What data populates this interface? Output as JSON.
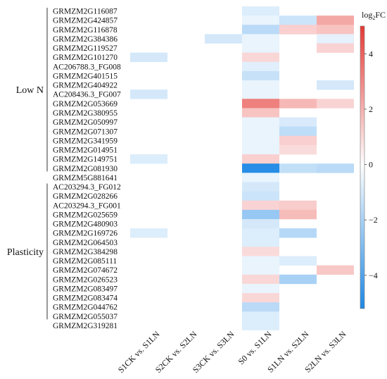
{
  "chart_data": {
    "type": "heatmap",
    "title": "",
    "legend": {
      "title_base": "log",
      "title_sub": "2",
      "title_suffix": "FC",
      "ticks": [
        4,
        2,
        0,
        -2,
        -4
      ],
      "range": [
        -5.2,
        5.0
      ]
    },
    "groups": [
      {
        "label": "Low N",
        "start": 0,
        "end": 17
      },
      {
        "label": "Plasticity",
        "start": 19,
        "end": 33
      }
    ],
    "columns": [
      "S1CK vs. S1LN",
      "S2CK vs. S2LN",
      "S3CK vs. S3LN",
      "S0 vs. S1LN",
      "S1LN vs. S2LN",
      "S2LN vs. S3LN"
    ],
    "rows": [
      "GRMZM2G116087",
      "GRMZM2G424857",
      "GRMZM2G116878",
      "GRMZM2G384386",
      "GRMZM2G119527",
      "GRMZM2G101270",
      "AC206788.3_FG008",
      "GRMZM2G401515",
      "GRMZM2G404922",
      "AC208436.3_FG007",
      "GRMZM2G053669",
      "GRMZM2G380955",
      "GRMZM2G050997",
      "GRMZM2G071307",
      "GRMZM2G341959",
      "GRMZM2G014951",
      "GRMZM2G149751",
      "GRMZM2G081930",
      "GRMZM5G881641",
      "AC203294.3_FG012",
      "GRMZM2G028266",
      "AC203294.3_FG001",
      "GRMZM2G025659",
      "GRMZM2G480903",
      "GRMZM2G169726",
      "GRMZM2G064503",
      "GRMZM2G384298",
      "GRMZM2G085111",
      "GRMZM2G074672",
      "GRMZM2G026523",
      "GRMZM2G083497",
      "GRMZM2G083474",
      "GRMZM2G044762",
      "GRMZM2G055037",
      "GRMZM2G319281"
    ],
    "values": [
      [
        null,
        null,
        null,
        -0.8,
        null,
        null
      ],
      [
        null,
        null,
        null,
        -0.5,
        -1.2,
        2.2
      ],
      [
        null,
        null,
        null,
        -1.6,
        1.2,
        1.5
      ],
      [
        null,
        null,
        -1.0,
        -0.5,
        null,
        -0.6
      ],
      [
        null,
        null,
        null,
        -0.5,
        null,
        1.1
      ],
      [
        -1.0,
        null,
        null,
        1.0,
        null,
        null
      ],
      [
        null,
        null,
        null,
        -0.7,
        null,
        null
      ],
      [
        null,
        null,
        null,
        -1.3,
        null,
        null
      ],
      [
        null,
        null,
        null,
        -0.5,
        null,
        -1.0
      ],
      [
        -1.0,
        null,
        null,
        -0.5,
        null,
        null
      ],
      [
        null,
        null,
        null,
        3.2,
        1.8,
        1.1
      ],
      [
        null,
        null,
        null,
        1.5,
        null,
        null
      ],
      [
        null,
        null,
        null,
        -0.5,
        -0.9,
        null
      ],
      [
        null,
        null,
        null,
        -0.5,
        -1.5,
        null
      ],
      [
        null,
        null,
        null,
        -0.5,
        1.2,
        null
      ],
      [
        null,
        null,
        null,
        -0.5,
        0.9,
        null
      ],
      [
        -0.8,
        null,
        null,
        1.2,
        null,
        null
      ],
      [
        null,
        null,
        null,
        -5.0,
        -1.4,
        -1.6
      ],
      [
        null,
        null,
        null,
        -0.5,
        null,
        null
      ],
      [
        null,
        null,
        null,
        -1.0,
        null,
        null
      ],
      [
        null,
        null,
        null,
        -1.2,
        null,
        null
      ],
      [
        null,
        null,
        null,
        1.1,
        1.3,
        null
      ],
      [
        null,
        null,
        null,
        -2.4,
        1.7,
        null
      ],
      [
        null,
        null,
        null,
        -1.0,
        null,
        null
      ],
      [
        -0.8,
        null,
        null,
        -0.8,
        -1.7,
        null
      ],
      [
        null,
        null,
        null,
        -0.8,
        null,
        null
      ],
      [
        null,
        null,
        null,
        0.9,
        null,
        null
      ],
      [
        null,
        null,
        null,
        -0.5,
        -0.8,
        null
      ],
      [
        null,
        null,
        null,
        -0.5,
        null,
        1.4
      ],
      [
        null,
        null,
        null,
        1.0,
        -2.0,
        null
      ],
      [
        null,
        null,
        null,
        -0.5,
        null,
        null
      ],
      [
        null,
        null,
        null,
        1.0,
        null,
        null
      ],
      [
        null,
        null,
        null,
        -1.6,
        null,
        null
      ],
      [
        null,
        null,
        null,
        -0.8,
        null,
        null
      ],
      [
        null,
        null,
        null,
        -0.8,
        null,
        null
      ]
    ]
  }
}
